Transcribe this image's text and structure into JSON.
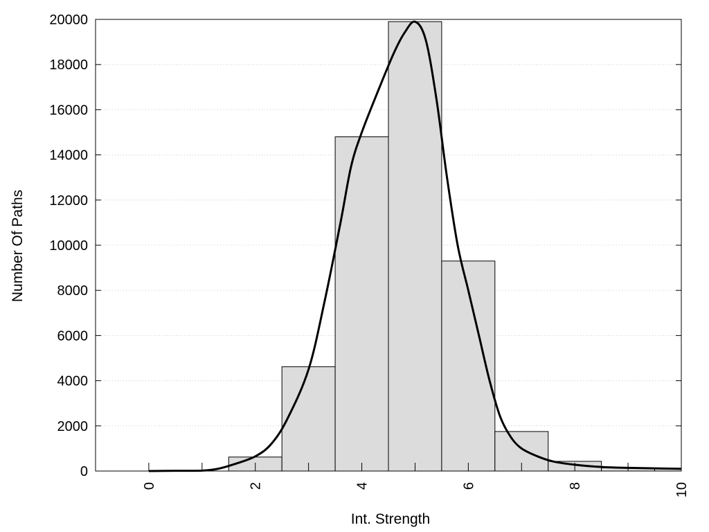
{
  "chart_data": {
    "type": "bar",
    "xlabel": "Int. Strength",
    "ylabel": "Number Of Paths",
    "xlim": [
      -1,
      10
    ],
    "ylim": [
      0,
      20000
    ],
    "x_ticks": [
      "0",
      "2",
      "4",
      "6",
      "8",
      "10"
    ],
    "y_ticks": [
      "0",
      "2000",
      "4000",
      "6000",
      "8000",
      "10000",
      "12000",
      "14000",
      "16000",
      "18000",
      "20000"
    ],
    "grid": "horizontal dotted",
    "bar_color": "#dcdcdc",
    "line_color": "#000000",
    "bins": [
      {
        "x": 0,
        "value": 0
      },
      {
        "x": 1,
        "value": 0
      },
      {
        "x": 2,
        "value": 620
      },
      {
        "x": 3,
        "value": 4620
      },
      {
        "x": 4,
        "value": 14800
      },
      {
        "x": 5,
        "value": 19900
      },
      {
        "x": 6,
        "value": 9300
      },
      {
        "x": 7,
        "value": 1750
      },
      {
        "x": 8,
        "value": 430
      },
      {
        "x": 9,
        "value": 140
      },
      {
        "x": 10,
        "value": 120
      }
    ],
    "curve": {
      "x": [
        0,
        0.5,
        1,
        1.3,
        1.6,
        2,
        2.3,
        2.6,
        3,
        3.3,
        3.6,
        3.8,
        4,
        4.3,
        4.6,
        4.8,
        5,
        5.2,
        5.4,
        5.6,
        5.8,
        6,
        6.2,
        6.4,
        6.6,
        6.8,
        7,
        7.3,
        7.6,
        8,
        8.5,
        9,
        9.5,
        10
      ],
      "y": [
        0,
        10,
        20,
        100,
        300,
        650,
        1200,
        2300,
        4500,
        7500,
        11000,
        13500,
        15000,
        16800,
        18500,
        19400,
        19900,
        19100,
        16500,
        13000,
        10000,
        8000,
        6000,
        4000,
        2400,
        1500,
        1000,
        650,
        420,
        280,
        180,
        140,
        120,
        100
      ]
    }
  }
}
